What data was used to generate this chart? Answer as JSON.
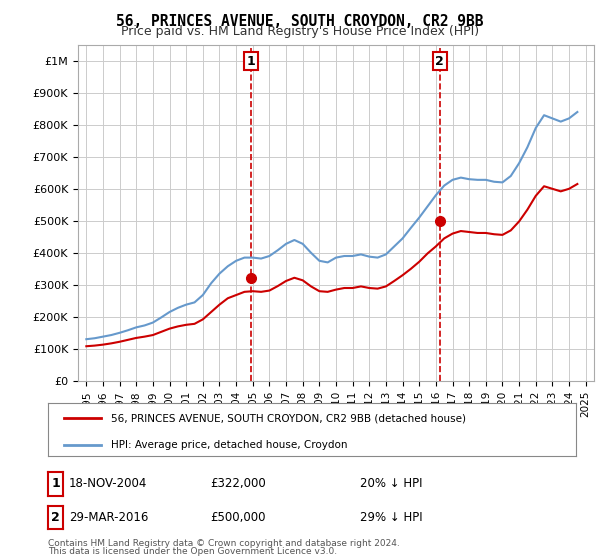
{
  "title": "56, PRINCES AVENUE, SOUTH CROYDON, CR2 9BB",
  "subtitle": "Price paid vs. HM Land Registry's House Price Index (HPI)",
  "legend_line1": "56, PRINCES AVENUE, SOUTH CROYDON, CR2 9BB (detached house)",
  "legend_line2": "HPI: Average price, detached house, Croydon",
  "purchase1_date": 2004.88,
  "purchase1_price": 322000,
  "purchase1_label": "1",
  "purchase2_date": 2016.24,
  "purchase2_price": 500000,
  "purchase2_label": "2",
  "table_rows": [
    [
      "1",
      "18-NOV-2004",
      "£322,000",
      "20% ↓ HPI"
    ],
    [
      "2",
      "29-MAR-2016",
      "£500,000",
      "29% ↓ HPI"
    ]
  ],
  "footnote1": "Contains HM Land Registry data © Crown copyright and database right 2024.",
  "footnote2": "This data is licensed under the Open Government Licence v3.0.",
  "red_color": "#cc0000",
  "blue_color": "#6699cc",
  "background_color": "#ffffff",
  "grid_color": "#cccccc",
  "hpi_data": {
    "years": [
      1995.0,
      1995.5,
      1996.0,
      1996.5,
      1997.0,
      1997.5,
      1998.0,
      1998.5,
      1999.0,
      1999.5,
      2000.0,
      2000.5,
      2001.0,
      2001.5,
      2002.0,
      2002.5,
      2003.0,
      2003.5,
      2004.0,
      2004.5,
      2005.0,
      2005.5,
      2006.0,
      2006.5,
      2007.0,
      2007.5,
      2008.0,
      2008.5,
      2009.0,
      2009.5,
      2010.0,
      2010.5,
      2011.0,
      2011.5,
      2012.0,
      2012.5,
      2013.0,
      2013.5,
      2014.0,
      2014.5,
      2015.0,
      2015.5,
      2016.0,
      2016.5,
      2017.0,
      2017.5,
      2018.0,
      2018.5,
      2019.0,
      2019.5,
      2020.0,
      2020.5,
      2021.0,
      2021.5,
      2022.0,
      2022.5,
      2023.0,
      2023.5,
      2024.0,
      2024.5
    ],
    "values": [
      130000,
      133000,
      138000,
      143000,
      150000,
      158000,
      167000,
      173000,
      182000,
      198000,
      215000,
      228000,
      238000,
      245000,
      268000,
      305000,
      335000,
      358000,
      375000,
      385000,
      385000,
      382000,
      390000,
      408000,
      428000,
      440000,
      428000,
      400000,
      375000,
      370000,
      385000,
      390000,
      390000,
      395000,
      388000,
      385000,
      395000,
      420000,
      445000,
      478000,
      510000,
      545000,
      580000,
      610000,
      628000,
      635000,
      630000,
      628000,
      628000,
      622000,
      620000,
      640000,
      680000,
      730000,
      790000,
      830000,
      820000,
      810000,
      820000,
      840000
    ]
  },
  "price_data": {
    "years": [
      1995.0,
      1995.5,
      1996.0,
      1996.5,
      1997.0,
      1997.5,
      1998.0,
      1998.5,
      1999.0,
      1999.5,
      2000.0,
      2000.5,
      2001.0,
      2001.5,
      2002.0,
      2002.5,
      2003.0,
      2003.5,
      2004.0,
      2004.5,
      2005.0,
      2005.5,
      2006.0,
      2006.5,
      2007.0,
      2007.5,
      2008.0,
      2008.5,
      2009.0,
      2009.5,
      2010.0,
      2010.5,
      2011.0,
      2011.5,
      2012.0,
      2012.5,
      2013.0,
      2013.5,
      2014.0,
      2014.5,
      2015.0,
      2015.5,
      2016.0,
      2016.5,
      2017.0,
      2017.5,
      2018.0,
      2018.5,
      2019.0,
      2019.5,
      2020.0,
      2020.5,
      2021.0,
      2021.5,
      2022.0,
      2022.5,
      2023.0,
      2023.5,
      2024.0,
      2024.5
    ],
    "values": [
      108000,
      110000,
      113000,
      117000,
      122000,
      128000,
      134000,
      138000,
      143000,
      153000,
      163000,
      170000,
      175000,
      178000,
      192000,
      215000,
      238000,
      258000,
      268000,
      278000,
      280000,
      278000,
      282000,
      296000,
      312000,
      322000,
      314000,
      295000,
      280000,
      278000,
      285000,
      290000,
      290000,
      295000,
      290000,
      288000,
      295000,
      312000,
      330000,
      350000,
      372000,
      398000,
      420000,
      445000,
      460000,
      468000,
      465000,
      462000,
      462000,
      458000,
      456000,
      470000,
      498000,
      535000,
      578000,
      608000,
      600000,
      592000,
      600000,
      615000
    ]
  },
  "ylim": [
    0,
    1050000
  ],
  "xlim": [
    1994.5,
    2025.5
  ],
  "ytick_vals": [
    0,
    100000,
    200000,
    300000,
    400000,
    500000,
    600000,
    700000,
    800000,
    900000,
    1000000
  ],
  "ytick_labels": [
    "£0",
    "£100K",
    "£200K",
    "£300K",
    "£400K",
    "£500K",
    "£600K",
    "£700K",
    "£800K",
    "£900K",
    "£1M"
  ],
  "xtick_years": [
    1995,
    1996,
    1997,
    1998,
    1999,
    2000,
    2001,
    2002,
    2003,
    2004,
    2005,
    2006,
    2007,
    2008,
    2009,
    2010,
    2011,
    2012,
    2013,
    2014,
    2015,
    2016,
    2017,
    2018,
    2019,
    2020,
    2021,
    2022,
    2023,
    2024,
    2025
  ]
}
